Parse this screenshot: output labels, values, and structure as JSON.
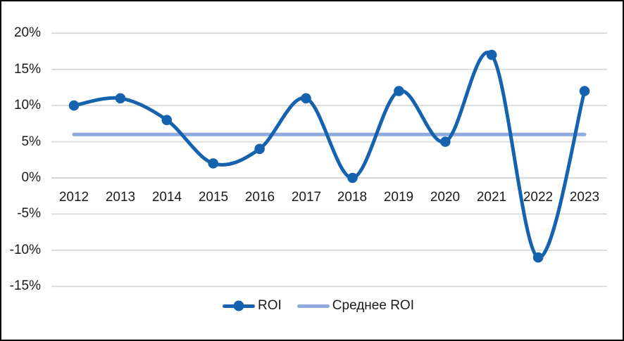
{
  "chart_data": {
    "type": "line",
    "title": "",
    "xlabel": "",
    "ylabel": "",
    "categories": [
      "2012",
      "2013",
      "2014",
      "2015",
      "2016",
      "2017",
      "2018",
      "2019",
      "2020",
      "2021",
      "2022",
      "2023"
    ],
    "series": [
      {
        "name": "ROI",
        "values": [
          10,
          11,
          8,
          2,
          4,
          11,
          0,
          12,
          5,
          17,
          -11,
          12
        ],
        "color": "#1562AE",
        "smooth": true,
        "marker": "circle"
      },
      {
        "name": "Среднее ROI",
        "values": [
          6,
          6,
          6,
          6,
          6,
          6,
          6,
          6,
          6,
          6,
          6,
          6
        ],
        "color": "#8FAADC",
        "smooth": false,
        "marker": "none"
      }
    ],
    "ylim": [
      -15,
      20
    ],
    "ytick_values": [
      20,
      15,
      10,
      5,
      0,
      -5,
      -10,
      -15
    ],
    "ytick_labels": [
      "20%",
      "15%",
      "10%",
      "5%",
      "0%",
      "-5%",
      "-10%",
      "-15%"
    ],
    "grid": "horizontal",
    "legend_position": "bottom"
  },
  "colors": {
    "gridline": "#D9D9D9",
    "zero_line": "#D3D3D3",
    "text": "#1A1A1A",
    "background": "#FFFFFF",
    "border": "#000000"
  }
}
